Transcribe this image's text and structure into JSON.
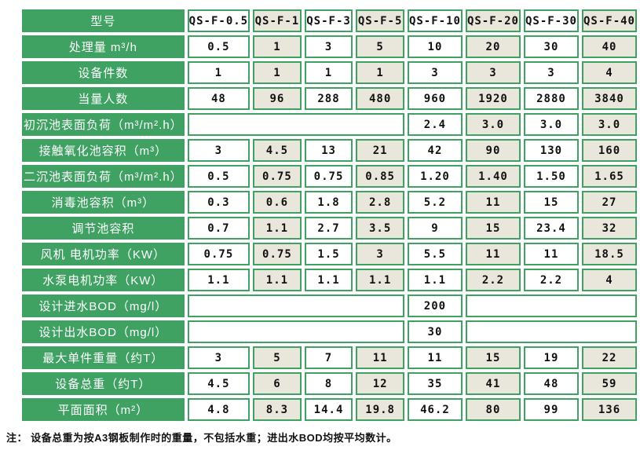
{
  "table": {
    "header": {
      "label": "型号",
      "models": [
        "QS-F-0.5",
        "QS-F-1",
        "QS-F-3",
        "QS-F-5",
        "QS-F-10",
        "QS-F-20",
        "QS-F-30",
        "QS-F-40"
      ]
    },
    "rows": [
      {
        "label": "处理量 m³/h",
        "cells": [
          "0.5",
          "1",
          "3",
          "5",
          "10",
          "20",
          "30",
          "40"
        ]
      },
      {
        "label": "设备件数",
        "cells": [
          "1",
          "1",
          "1",
          "1",
          "3",
          "3",
          "3",
          "4"
        ]
      },
      {
        "label": "当量人数",
        "cells": [
          "48",
          "96",
          "288",
          "480",
          "960",
          "1920",
          "2880",
          "3840"
        ]
      },
      {
        "label": "初沉池表面负荷（m³/m².h）",
        "cells": [
          {
            "v": "",
            "span": 4
          },
          "2.4",
          "3.0",
          "3.0",
          "3.0"
        ]
      },
      {
        "label": "接触氧化池容积（m³）",
        "cells": [
          "3",
          "4.5",
          "13",
          "21",
          "42",
          "90",
          "130",
          "160"
        ]
      },
      {
        "label": "二沉池表面负荷（m³/m².h）",
        "cells": [
          "0.5",
          "0.75",
          "0.75",
          "0.85",
          "1.20",
          "1.40",
          "1.50",
          "1.65"
        ]
      },
      {
        "label": "消毒池容积（m³）",
        "cells": [
          "0.3",
          "0.6",
          "1.8",
          "2.8",
          "5.2",
          "11",
          "15",
          "27"
        ]
      },
      {
        "label": "调节池容积",
        "cells": [
          "0.7",
          "1.1",
          "2.7",
          "3.5",
          "9",
          "15",
          "23.4",
          "32"
        ]
      },
      {
        "label": "风机 电机功率（KW）",
        "cells": [
          "0.75",
          "0.75",
          "1.5",
          "3",
          "5.5",
          "11",
          "11",
          "18.5"
        ]
      },
      {
        "label": "水泵电机功率（KW）",
        "cells": [
          "1.1",
          "1.1",
          "1.1",
          "1.1",
          "1.1",
          "2.2",
          "2.2",
          "4"
        ]
      },
      {
        "label": "设计进水BOD（mg/l）",
        "cells": [
          {
            "v": "",
            "span": 4
          },
          "200",
          {
            "v": "",
            "span": 3
          }
        ]
      },
      {
        "label": "设计出水BOD（mg/l）",
        "cells": [
          {
            "v": "",
            "span": 4
          },
          "30",
          {
            "v": "",
            "span": 3
          }
        ]
      },
      {
        "label": "最大单件重量（约T）",
        "cells": [
          "3",
          "5",
          "7",
          "11",
          "11",
          "15",
          "19",
          "22"
        ]
      },
      {
        "label": "设备总重（约T）",
        "cells": [
          "4.5",
          "6",
          "8",
          "12",
          "35",
          "41",
          "48",
          "59"
        ]
      },
      {
        "label": "平面面积（m²）",
        "cells": [
          "4.8",
          "8.3",
          "14.4",
          "19.8",
          "46.2",
          "80",
          "99",
          "136"
        ]
      }
    ]
  },
  "note": "注： 设备总重为按A3钢板制作时的重量，不包括水重；进出水BOD均按平均数计。",
  "layout": {
    "label_col_width": 200,
    "data_col_width": 66
  },
  "colors": {
    "green": "#3fa263",
    "beige": "#e9e6db",
    "text": "#111111",
    "label_text": "#ffffff",
    "background": "#ffffff"
  }
}
